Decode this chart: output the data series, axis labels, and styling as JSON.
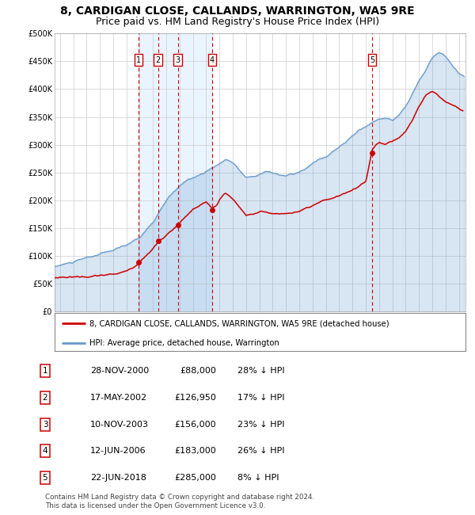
{
  "title": "8, CARDIGAN CLOSE, CALLANDS, WARRINGTON, WA5 9RE",
  "subtitle": "Price paid vs. HM Land Registry's House Price Index (HPI)",
  "title_fontsize": 10,
  "subtitle_fontsize": 9,
  "background_color": "#ffffff",
  "plot_bg_color": "#ffffff",
  "grid_color": "#cccccc",
  "sale_color": "#cc0000",
  "hpi_color": "#6699cc",
  "shade_color": "#ddeeff",
  "dashed_line_color": "#cc0000",
  "ylim": [
    0,
    500000
  ],
  "yticks": [
    0,
    50000,
    100000,
    150000,
    200000,
    250000,
    300000,
    350000,
    400000,
    450000,
    500000
  ],
  "ytick_labels": [
    "£0",
    "£50K",
    "£100K",
    "£150K",
    "£200K",
    "£250K",
    "£300K",
    "£350K",
    "£400K",
    "£450K",
    "£500K"
  ],
  "xlim_start": 1994.6,
  "xlim_end": 2025.5,
  "xticks": [
    1995,
    1996,
    1997,
    1998,
    1999,
    2000,
    2001,
    2002,
    2003,
    2004,
    2005,
    2006,
    2007,
    2008,
    2009,
    2010,
    2011,
    2012,
    2013,
    2014,
    2015,
    2016,
    2017,
    2018,
    2019,
    2020,
    2021,
    2022,
    2023,
    2024,
    2025
  ],
  "sales": [
    {
      "num": 1,
      "date": "28-NOV-2000",
      "price": 88000,
      "pct": "28%",
      "x": 2000.91
    },
    {
      "num": 2,
      "date": "17-MAY-2002",
      "price": 126950,
      "pct": "17%",
      "x": 2002.38
    },
    {
      "num": 3,
      "date": "10-NOV-2003",
      "price": 156000,
      "pct": "23%",
      "x": 2003.86
    },
    {
      "num": 4,
      "date": "12-JUN-2006",
      "price": 183000,
      "pct": "26%",
      "x": 2006.45
    },
    {
      "num": 5,
      "date": "22-JUN-2018",
      "price": 285000,
      "pct": "8%",
      "x": 2018.47
    }
  ],
  "legend_sale_label": "8, CARDIGAN CLOSE, CALLANDS, WARRINGTON, WA5 9RE (detached house)",
  "legend_hpi_label": "HPI: Average price, detached house, Warrington",
  "table_rows": [
    [
      "1",
      "28-NOV-2000",
      "£88,000",
      "28% ↓ HPI"
    ],
    [
      "2",
      "17-MAY-2002",
      "£126,950",
      "17% ↓ HPI"
    ],
    [
      "3",
      "10-NOV-2003",
      "£156,000",
      "23% ↓ HPI"
    ],
    [
      "4",
      "12-JUN-2006",
      "£183,000",
      "26% ↓ HPI"
    ],
    [
      "5",
      "22-JUN-2018",
      "£285,000",
      "8% ↓ HPI"
    ]
  ],
  "footnote": "Contains HM Land Registry data © Crown copyright and database right 2024.\nThis data is licensed under the Open Government Licence v3.0.",
  "shade_start": 2000.91,
  "shade_end": 2006.45
}
